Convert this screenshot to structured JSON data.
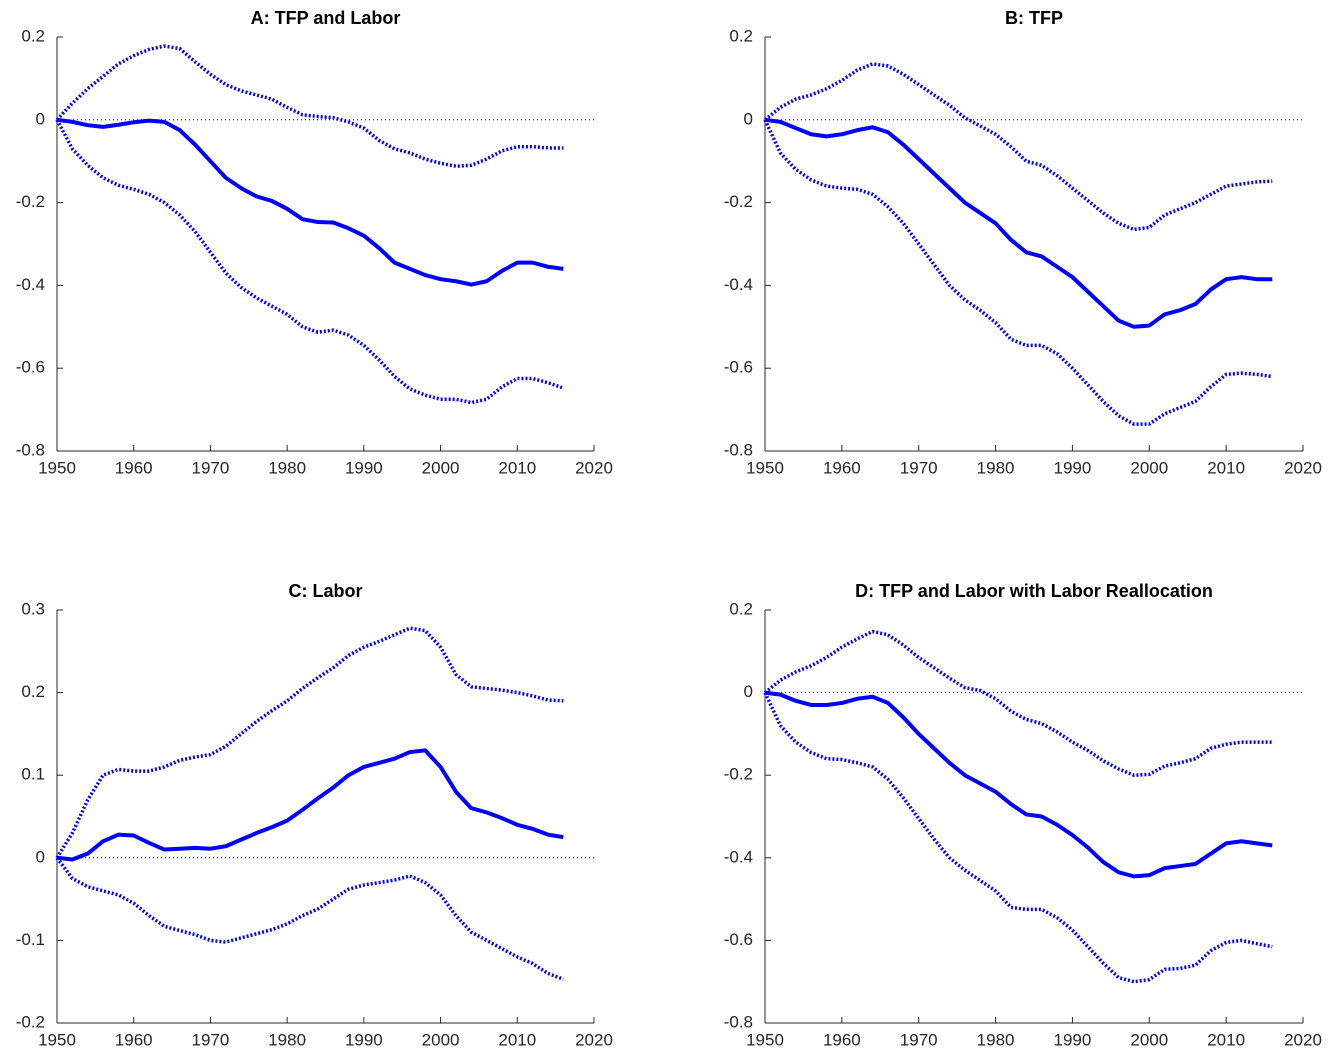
{
  "chart_data": [
    {
      "type": "line",
      "title": "A: TFP and Labor",
      "x": [
        1950,
        1952,
        1954,
        1956,
        1958,
        1960,
        1962,
        1964,
        1966,
        1968,
        1970,
        1972,
        1974,
        1976,
        1978,
        1980,
        1982,
        1984,
        1986,
        1988,
        1990,
        1992,
        1994,
        1996,
        1998,
        2000,
        2002,
        2004,
        2006,
        2008,
        2010,
        2012,
        2014,
        2016
      ],
      "series": [
        {
          "color": "#0000ff",
          "line_style": "solid",
          "values": [
            0,
            -0.005,
            -0.013,
            -0.017,
            -0.012,
            -0.006,
            -0.002,
            -0.005,
            -0.025,
            -0.06,
            -0.1,
            -0.14,
            -0.165,
            -0.185,
            -0.196,
            -0.215,
            -0.24,
            -0.247,
            -0.248,
            -0.262,
            -0.28,
            -0.31,
            -0.345,
            -0.36,
            -0.375,
            -0.385,
            -0.39,
            -0.398,
            -0.39,
            -0.365,
            -0.345,
            -0.345,
            -0.355,
            -0.36
          ]
        },
        {
          "color": "#0000ff",
          "line_style": "dotted",
          "values": [
            0,
            0.04,
            0.075,
            0.105,
            0.135,
            0.155,
            0.17,
            0.178,
            0.172,
            0.14,
            0.11,
            0.085,
            0.07,
            0.06,
            0.05,
            0.03,
            0.012,
            0.008,
            0.005,
            -0.005,
            -0.02,
            -0.05,
            -0.07,
            -0.08,
            -0.095,
            -0.105,
            -0.112,
            -0.11,
            -0.095,
            -0.075,
            -0.065,
            -0.065,
            -0.068,
            -0.068
          ]
        },
        {
          "color": "#0000ff",
          "line_style": "dotted",
          "values": [
            0,
            -0.07,
            -0.11,
            -0.14,
            -0.158,
            -0.168,
            -0.18,
            -0.2,
            -0.23,
            -0.27,
            -0.32,
            -0.37,
            -0.405,
            -0.43,
            -0.45,
            -0.47,
            -0.5,
            -0.513,
            -0.508,
            -0.52,
            -0.545,
            -0.58,
            -0.62,
            -0.65,
            -0.665,
            -0.675,
            -0.675,
            -0.683,
            -0.675,
            -0.645,
            -0.625,
            -0.625,
            -0.635,
            -0.648
          ]
        }
      ],
      "xlim": [
        1950,
        2020
      ],
      "xticks": [
        1950,
        1960,
        1970,
        1980,
        1990,
        2000,
        2010,
        2020
      ],
      "ylim": [
        -0.8,
        0.2
      ],
      "yticks": [
        -0.8,
        -0.6,
        -0.4,
        -0.2,
        0,
        0.2
      ],
      "reference_line": 0
    },
    {
      "type": "line",
      "title": "B: TFP",
      "x": [
        1950,
        1952,
        1954,
        1956,
        1958,
        1960,
        1962,
        1964,
        1966,
        1968,
        1970,
        1972,
        1974,
        1976,
        1978,
        1980,
        1982,
        1984,
        1986,
        1988,
        1990,
        1992,
        1994,
        1996,
        1998,
        2000,
        2002,
        2004,
        2006,
        2008,
        2010,
        2012,
        2014,
        2016
      ],
      "series": [
        {
          "color": "#0000ff",
          "line_style": "solid",
          "values": [
            0,
            -0.005,
            -0.02,
            -0.035,
            -0.04,
            -0.035,
            -0.025,
            -0.018,
            -0.03,
            -0.06,
            -0.095,
            -0.13,
            -0.165,
            -0.2,
            -0.225,
            -0.25,
            -0.29,
            -0.32,
            -0.33,
            -0.355,
            -0.38,
            -0.415,
            -0.45,
            -0.485,
            -0.5,
            -0.497,
            -0.47,
            -0.46,
            -0.445,
            -0.41,
            -0.385,
            -0.38,
            -0.385,
            -0.385
          ]
        },
        {
          "color": "#0000ff",
          "line_style": "dotted",
          "values": [
            0,
            0.03,
            0.05,
            0.06,
            0.075,
            0.095,
            0.12,
            0.135,
            0.13,
            0.11,
            0.085,
            0.06,
            0.035,
            0.005,
            -0.015,
            -0.035,
            -0.065,
            -0.1,
            -0.11,
            -0.135,
            -0.165,
            -0.195,
            -0.225,
            -0.25,
            -0.265,
            -0.26,
            -0.23,
            -0.215,
            -0.2,
            -0.18,
            -0.16,
            -0.155,
            -0.15,
            -0.148
          ]
        },
        {
          "color": "#0000ff",
          "line_style": "dotted",
          "values": [
            0,
            -0.08,
            -0.12,
            -0.145,
            -0.16,
            -0.165,
            -0.168,
            -0.18,
            -0.21,
            -0.25,
            -0.3,
            -0.35,
            -0.4,
            -0.435,
            -0.46,
            -0.49,
            -0.53,
            -0.545,
            -0.545,
            -0.565,
            -0.6,
            -0.64,
            -0.68,
            -0.715,
            -0.735,
            -0.735,
            -0.71,
            -0.695,
            -0.68,
            -0.645,
            -0.615,
            -0.612,
            -0.615,
            -0.62
          ]
        }
      ],
      "xlim": [
        1950,
        2020
      ],
      "xticks": [
        1950,
        1960,
        1970,
        1980,
        1990,
        2000,
        2010,
        2020
      ],
      "ylim": [
        -0.8,
        0.2
      ],
      "yticks": [
        -0.8,
        -0.6,
        -0.4,
        -0.2,
        0,
        0.2
      ],
      "reference_line": 0
    },
    {
      "type": "line",
      "title": "C: Labor",
      "x": [
        1950,
        1952,
        1954,
        1956,
        1958,
        1960,
        1962,
        1964,
        1966,
        1968,
        1970,
        1972,
        1974,
        1976,
        1978,
        1980,
        1982,
        1984,
        1986,
        1988,
        1990,
        1992,
        1994,
        1996,
        1998,
        2000,
        2002,
        2004,
        2006,
        2008,
        2010,
        2012,
        2014,
        2016
      ],
      "series": [
        {
          "color": "#0000ff",
          "line_style": "solid",
          "values": [
            0,
            -0.002,
            0.005,
            0.02,
            0.028,
            0.027,
            0.018,
            0.01,
            0.011,
            0.012,
            0.011,
            0.014,
            0.022,
            0.03,
            0.037,
            0.045,
            0.058,
            0.072,
            0.085,
            0.1,
            0.11,
            0.115,
            0.12,
            0.128,
            0.13,
            0.11,
            0.08,
            0.06,
            0.055,
            0.048,
            0.04,
            0.035,
            0.028,
            0.025
          ]
        },
        {
          "color": "#0000ff",
          "line_style": "dotted",
          "values": [
            0,
            0.03,
            0.07,
            0.1,
            0.107,
            0.105,
            0.105,
            0.11,
            0.118,
            0.122,
            0.125,
            0.135,
            0.15,
            0.165,
            0.178,
            0.19,
            0.205,
            0.218,
            0.23,
            0.245,
            0.255,
            0.262,
            0.27,
            0.278,
            0.275,
            0.255,
            0.222,
            0.207,
            0.205,
            0.203,
            0.2,
            0.196,
            0.191,
            0.19
          ]
        },
        {
          "color": "#0000ff",
          "line_style": "dotted",
          "values": [
            0,
            -0.025,
            -0.035,
            -0.04,
            -0.045,
            -0.055,
            -0.07,
            -0.083,
            -0.088,
            -0.093,
            -0.1,
            -0.102,
            -0.097,
            -0.092,
            -0.087,
            -0.08,
            -0.07,
            -0.062,
            -0.05,
            -0.038,
            -0.033,
            -0.03,
            -0.027,
            -0.022,
            -0.03,
            -0.045,
            -0.07,
            -0.09,
            -0.1,
            -0.11,
            -0.12,
            -0.128,
            -0.14,
            -0.147
          ]
        }
      ],
      "xlim": [
        1950,
        2020
      ],
      "xticks": [
        1950,
        1960,
        1970,
        1980,
        1990,
        2000,
        2010,
        2020
      ],
      "ylim": [
        -0.2,
        0.3
      ],
      "yticks": [
        -0.2,
        -0.1,
        0,
        0.1,
        0.2,
        0.3
      ],
      "reference_line": 0
    },
    {
      "type": "line",
      "title": "D: TFP and Labor with Labor Reallocation",
      "x": [
        1950,
        1952,
        1954,
        1956,
        1958,
        1960,
        1962,
        1964,
        1966,
        1968,
        1970,
        1972,
        1974,
        1976,
        1978,
        1980,
        1982,
        1984,
        1986,
        1988,
        1990,
        1992,
        1994,
        1996,
        1998,
        2000,
        2002,
        2004,
        2006,
        2008,
        2010,
        2012,
        2014,
        2016
      ],
      "series": [
        {
          "color": "#0000ff",
          "line_style": "solid",
          "values": [
            0,
            -0.005,
            -0.02,
            -0.03,
            -0.03,
            -0.025,
            -0.015,
            -0.01,
            -0.025,
            -0.06,
            -0.1,
            -0.135,
            -0.17,
            -0.2,
            -0.22,
            -0.24,
            -0.27,
            -0.295,
            -0.3,
            -0.32,
            -0.345,
            -0.375,
            -0.41,
            -0.435,
            -0.445,
            -0.442,
            -0.425,
            -0.42,
            -0.415,
            -0.39,
            -0.365,
            -0.36,
            -0.365,
            -0.37
          ]
        },
        {
          "color": "#0000ff",
          "line_style": "dotted",
          "values": [
            0,
            0.03,
            0.05,
            0.065,
            0.085,
            0.11,
            0.13,
            0.148,
            0.14,
            0.115,
            0.085,
            0.06,
            0.035,
            0.012,
            0.005,
            -0.015,
            -0.045,
            -0.065,
            -0.075,
            -0.095,
            -0.12,
            -0.14,
            -0.165,
            -0.185,
            -0.2,
            -0.198,
            -0.178,
            -0.17,
            -0.16,
            -0.135,
            -0.125,
            -0.12,
            -0.12,
            -0.12
          ]
        },
        {
          "color": "#0000ff",
          "line_style": "dotted",
          "values": [
            0,
            -0.08,
            -0.12,
            -0.145,
            -0.16,
            -0.162,
            -0.17,
            -0.18,
            -0.21,
            -0.255,
            -0.305,
            -0.355,
            -0.4,
            -0.43,
            -0.455,
            -0.48,
            -0.52,
            -0.525,
            -0.525,
            -0.545,
            -0.575,
            -0.615,
            -0.655,
            -0.69,
            -0.7,
            -0.695,
            -0.67,
            -0.668,
            -0.66,
            -0.625,
            -0.605,
            -0.6,
            -0.608,
            -0.615
          ]
        }
      ],
      "xlim": [
        1950,
        2020
      ],
      "xticks": [
        1950,
        1960,
        1970,
        1980,
        1990,
        2000,
        2010,
        2020
      ],
      "ylim": [
        -0.8,
        0.2
      ],
      "yticks": [
        -0.8,
        -0.6,
        -0.4,
        -0.2,
        0,
        0.2
      ],
      "reference_line": 0
    }
  ]
}
